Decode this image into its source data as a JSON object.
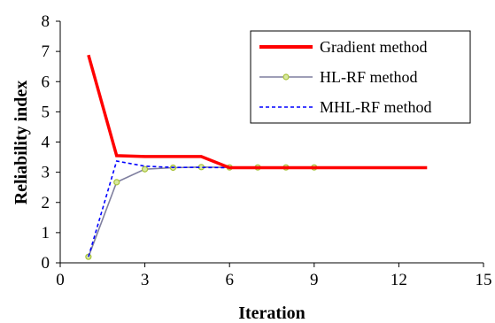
{
  "chart_data": {
    "type": "line",
    "xlabel": "Iteration",
    "ylabel": "Reliability index",
    "xlim": [
      0,
      15
    ],
    "ylim": [
      0,
      8
    ],
    "xticks": [
      0,
      3,
      6,
      9,
      12,
      15
    ],
    "yticks": [
      0,
      1,
      2,
      3,
      4,
      5,
      6,
      7,
      8
    ],
    "grid": false,
    "legend_position": "top-right",
    "series": [
      {
        "name": "Gradient method",
        "color": "#ff0000",
        "style": "solid-thick",
        "marker": "none",
        "x": [
          1,
          2,
          3,
          4,
          5,
          6,
          7,
          8,
          9,
          10,
          11,
          12,
          13
        ],
        "y": [
          6.88,
          3.55,
          3.52,
          3.52,
          3.52,
          3.15,
          3.15,
          3.15,
          3.15,
          3.15,
          3.15,
          3.15,
          3.15
        ]
      },
      {
        "name": "HL-RF method",
        "color": "#7f7f9f",
        "style": "solid",
        "marker": "circle",
        "marker_color": "#a8c23a",
        "x": [
          1,
          2,
          3,
          4,
          5,
          6,
          7,
          8,
          9
        ],
        "y": [
          0.2,
          2.67,
          3.1,
          3.15,
          3.17,
          3.16,
          3.16,
          3.16,
          3.16
        ]
      },
      {
        "name": "MHL-RF method",
        "color": "#0000ff",
        "style": "dashed",
        "marker": "none",
        "x": [
          1,
          2,
          3,
          4,
          5,
          6,
          7,
          8,
          9
        ],
        "y": [
          0.2,
          3.37,
          3.2,
          3.16,
          3.16,
          3.15,
          3.15,
          3.15,
          3.15
        ]
      }
    ]
  }
}
